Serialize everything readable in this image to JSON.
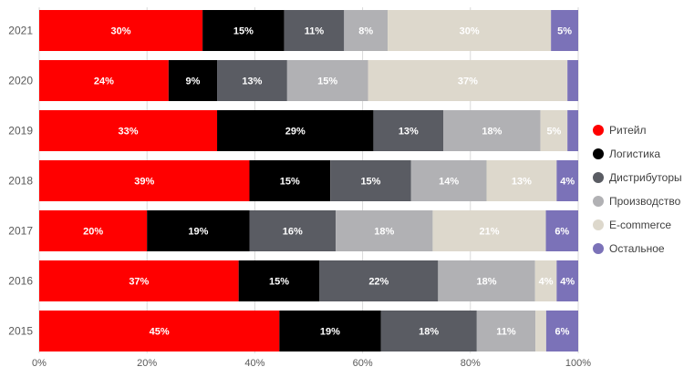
{
  "chart_data": {
    "type": "bar",
    "orientation": "horizontal",
    "stacked": "percent",
    "categories": [
      "2021",
      "2020",
      "2019",
      "2018",
      "2017",
      "2016",
      "2015"
    ],
    "series": [
      {
        "name": "Ритейл",
        "color": "#ff0000",
        "label_color": "#ffffff",
        "values": [
          30,
          24,
          33,
          39,
          20,
          37,
          45
        ],
        "labels": [
          "30%",
          "24%",
          "33%",
          "39%",
          "20%",
          "37%",
          "45%"
        ]
      },
      {
        "name": "Логистика",
        "color": "#000000",
        "label_color": "#ffffff",
        "values": [
          15,
          9,
          29,
          15,
          19,
          15,
          19
        ],
        "labels": [
          "15%",
          "9%",
          "29%",
          "15%",
          "19%",
          "15%",
          "19%"
        ]
      },
      {
        "name": "Дистрибуторы",
        "color": "#5a5c63",
        "label_color": "#ffffff",
        "values": [
          11,
          13,
          13,
          15,
          16,
          22,
          18
        ],
        "labels": [
          "11%",
          "13%",
          "13%",
          "15%",
          "16%",
          "22%",
          "18%"
        ]
      },
      {
        "name": "Производство",
        "color": "#b1b1b4",
        "label_color": "#ffffff",
        "values": [
          8,
          15,
          18,
          14,
          18,
          18,
          11
        ],
        "labels": [
          "8%",
          "15%",
          "18%",
          "14%",
          "18%",
          "18%",
          "11%"
        ]
      },
      {
        "name": "E-commerce",
        "color": "#ddd8cc",
        "label_color": "#ffffff",
        "values": [
          30,
          37,
          5,
          13,
          21,
          4,
          2
        ],
        "labels": [
          "30%",
          "37%",
          "5%",
          "13%",
          "21%",
          "4%",
          ""
        ]
      },
      {
        "name": "Остальное",
        "color": "#7b72b8",
        "label_color": "#ffffff",
        "values": [
          5,
          2,
          2,
          4,
          6,
          4,
          6
        ],
        "labels": [
          "5%",
          "",
          "",
          "4%",
          "6%",
          "4%",
          "6%"
        ]
      }
    ],
    "xlim": [
      0,
      100
    ],
    "x_ticks": [
      "0%",
      "20%",
      "40%",
      "60%",
      "80%",
      "100%"
    ],
    "x_tick_values": [
      0,
      20,
      40,
      60,
      80,
      100
    ],
    "grid": true,
    "legend_position": "right",
    "title": "",
    "xlabel": "",
    "ylabel": ""
  }
}
